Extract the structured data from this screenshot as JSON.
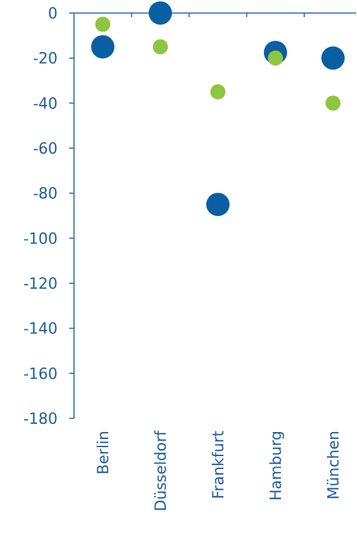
{
  "chart_data": {
    "type": "scatter",
    "categories": [
      "Berlin",
      "Düsseldorf",
      "Frankfurt",
      "Hamburg",
      "München"
    ],
    "series": [
      {
        "values": [
          -15,
          0,
          -85,
          -17.5,
          -20
        ],
        "color": "#0a5fa3"
      },
      {
        "values": [
          -5,
          -15,
          -35,
          -20,
          -40
        ],
        "color": "#8dc63f"
      }
    ],
    "yticks": [
      0,
      -20,
      -40,
      -60,
      -80,
      -100,
      -120,
      -140,
      -160,
      -180
    ],
    "ylim": [
      -180,
      0
    ],
    "grid": false,
    "legend": "none"
  }
}
